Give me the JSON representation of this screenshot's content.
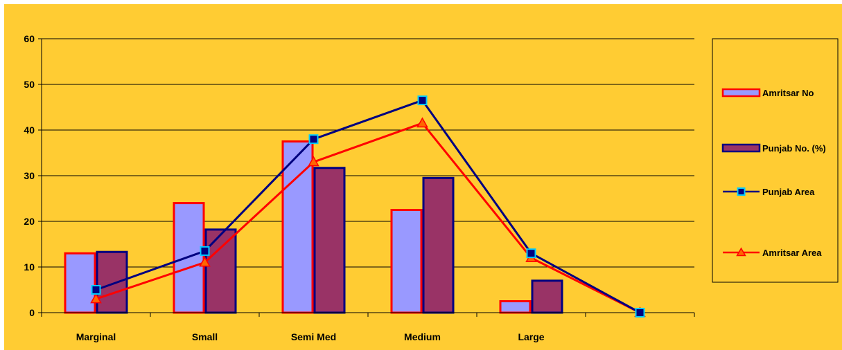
{
  "chart_data": {
    "type": "bar",
    "categories": [
      "Marginal",
      "Small",
      "Semi Med",
      "Medium",
      "Large",
      ""
    ],
    "ylim": [
      0,
      60
    ],
    "yticks": [
      0,
      10,
      20,
      30,
      40,
      50,
      60
    ],
    "grid": true,
    "legend_position": "right",
    "background_color": "#FFCC33",
    "bar_series": [
      {
        "name": "Amritsar No",
        "values": [
          13,
          24,
          37.5,
          22.5,
          2.5,
          null
        ],
        "fill": "#9999FF",
        "stroke": "#FF0000"
      },
      {
        "name": "Punjab No. (%)",
        "values": [
          13.3,
          18.2,
          31.7,
          29.5,
          7,
          null
        ],
        "fill": "#993366",
        "stroke": "#000080"
      }
    ],
    "line_series": [
      {
        "name": "Punjab Area",
        "values": [
          5,
          13.5,
          38,
          46.5,
          13,
          0
        ],
        "stroke": "#000080",
        "marker": "square",
        "marker_fill": "#000080",
        "marker_stroke": "#00CCFF"
      },
      {
        "name": "Amritsar Area",
        "values": [
          3,
          11,
          33,
          41.5,
          12,
          0
        ],
        "stroke": "#FF0000",
        "marker": "triangle",
        "marker_fill": "#FF6600",
        "marker_stroke": "#FF0000"
      }
    ]
  }
}
